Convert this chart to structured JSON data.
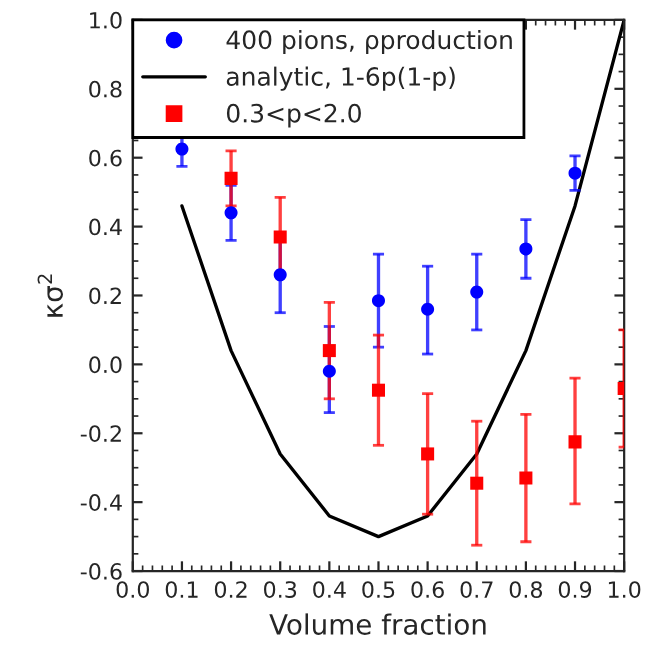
{
  "chart_data": {
    "type": "scatter",
    "xlabel": "Volume fraction",
    "ylabel": "κσ$^{2}$",
    "xlim": [
      0.0,
      1.0
    ],
    "xticks": [
      {
        "value": 0.0,
        "label": "0.0"
      },
      0.1,
      0.2,
      0.3,
      0.4,
      0.5,
      0.6,
      0.7,
      0.8,
      0.9,
      {
        "value": 1.0,
        "label": "1.0"
      }
    ],
    "ylim": [
      -0.6,
      1.0
    ],
    "yticks": [
      -0.6,
      -0.4,
      -0.2,
      {
        "value": 0.0,
        "label": "0.0"
      },
      0.2,
      0.4,
      0.6,
      0.8,
      {
        "value": 1.0,
        "label": "1.0"
      }
    ],
    "legend": "top left",
    "grid": false,
    "series": [
      {
        "name": "400 pions, ρproduction",
        "marker": "circle",
        "color": "#0000ff",
        "x": [
          0.1,
          0.2,
          0.3,
          0.4,
          0.5,
          0.6,
          0.7,
          0.8,
          0.9
        ],
        "values": [
          0.625,
          0.44,
          0.26,
          -0.02,
          0.185,
          0.16,
          0.21,
          0.335,
          0.555
        ],
        "errors": [
          [
            0.575,
            0.675
          ],
          [
            0.36,
            0.52
          ],
          [
            0.15,
            0.37
          ],
          [
            -0.14,
            0.11
          ],
          [
            0.05,
            0.32
          ],
          [
            0.03,
            0.285
          ],
          [
            0.1,
            0.32
          ],
          [
            0.25,
            0.42
          ],
          [
            0.505,
            0.605
          ]
        ]
      },
      {
        "name": "analytic, 1-6p(1-p)",
        "type": "line",
        "marker": "none",
        "line_style": "solid",
        "color": "#000000",
        "x": [
          0.1,
          0.2,
          0.3,
          0.4,
          0.5,
          0.6,
          0.7,
          0.8,
          0.9,
          1.0
        ],
        "values": [
          0.46,
          0.04,
          -0.26,
          -0.44,
          -0.5,
          -0.44,
          -0.26,
          0.04,
          0.46,
          1.0
        ]
      },
      {
        "name": "0.3<p<2.0",
        "marker": "square",
        "color": "#ff0000",
        "x": [
          0.2,
          0.3,
          0.4,
          0.5,
          0.6,
          0.7,
          0.8,
          0.9,
          1.0
        ],
        "values": [
          0.54,
          0.37,
          0.04,
          -0.075,
          -0.26,
          -0.345,
          -0.33,
          -0.225,
          -0.07
        ],
        "errors": [
          [
            0.46,
            0.62
          ],
          [
            0.26,
            0.485
          ],
          [
            -0.1,
            0.18
          ],
          [
            -0.235,
            0.085
          ],
          [
            -0.435,
            -0.085
          ],
          [
            -0.525,
            -0.165
          ],
          [
            -0.515,
            -0.145
          ],
          [
            -0.405,
            -0.04
          ],
          [
            -0.24,
            0.1
          ]
        ]
      }
    ]
  }
}
